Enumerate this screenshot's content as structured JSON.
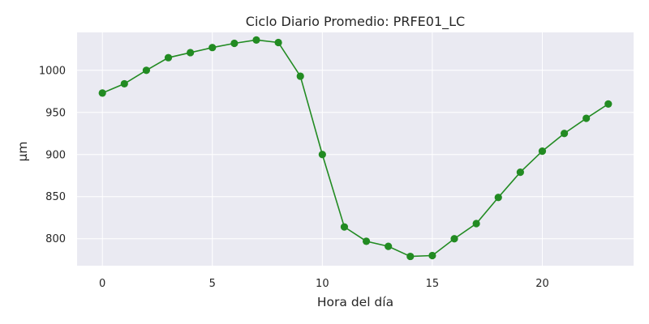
{
  "chart_data": {
    "type": "line",
    "title": "Ciclo Diario Promedio: PRFE01_LC",
    "xlabel": "Hora del día",
    "ylabel": "µm",
    "x": [
      0,
      1,
      2,
      3,
      4,
      5,
      6,
      7,
      8,
      9,
      10,
      11,
      12,
      13,
      14,
      15,
      16,
      17,
      18,
      19,
      20,
      21,
      22,
      23
    ],
    "series": [
      {
        "values": [
          973,
          984,
          1000,
          1015,
          1021,
          1027,
          1032,
          1036,
          1033,
          993,
          900,
          814,
          797,
          791,
          779,
          780,
          800,
          818,
          849,
          879,
          904,
          925,
          943,
          960
        ]
      }
    ],
    "xlim": [
      -1.15,
      24.15
    ],
    "ylim": [
      768,
      1045
    ],
    "xticks": [
      0,
      5,
      10,
      15,
      20
    ],
    "yticks": [
      800,
      850,
      900,
      950,
      1000
    ],
    "grid": true,
    "colors": {
      "line": "#228b22",
      "plot_background": "#eaeaf2",
      "grid": "#ffffff"
    }
  }
}
